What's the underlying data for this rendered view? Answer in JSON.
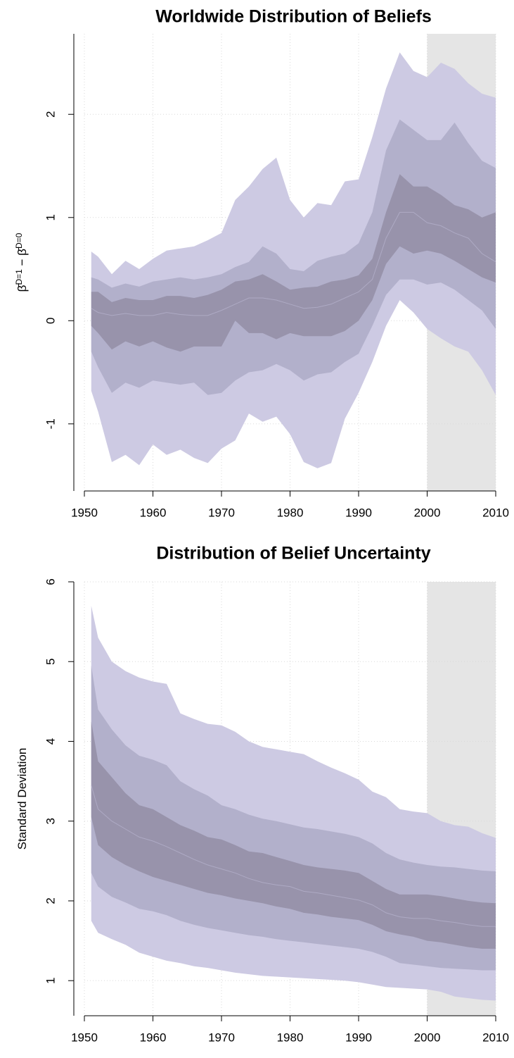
{
  "chart_data": [
    {
      "type": "fan",
      "title": "Worldwide Distribution of Beliefs",
      "ylabel": [
        "β̄",
        "D=1",
        " − β̄",
        "D=0"
      ],
      "x": [
        1951,
        1952,
        1954,
        1956,
        1958,
        1960,
        1962,
        1964,
        1966,
        1968,
        1970,
        1972,
        1974,
        1976,
        1978,
        1980,
        1982,
        1984,
        1986,
        1988,
        1990,
        1992,
        1994,
        1996,
        1998,
        2000,
        2002,
        2004,
        2006,
        2008,
        2010
      ],
      "xlim": [
        1950,
        2010
      ],
      "xticks": [
        1950,
        1960,
        1970,
        1980,
        1990,
        2000,
        2010
      ],
      "ylim": [
        -1.65,
        2.78
      ],
      "yticks": [
        -1,
        0,
        1,
        2
      ],
      "grid": true,
      "shade": {
        "range": [
          2000,
          2010
        ],
        "color": "#e5e5e5"
      },
      "bands": [
        {
          "color": "#cdcae3",
          "upper": [
            0.67,
            0.62,
            0.45,
            0.58,
            0.5,
            0.6,
            0.68,
            0.7,
            0.72,
            0.78,
            0.85,
            1.17,
            1.3,
            1.47,
            1.58,
            1.17,
            1.0,
            1.14,
            1.12,
            1.35,
            1.37,
            1.78,
            2.25,
            2.6,
            2.42,
            2.36,
            2.5,
            2.44,
            2.3,
            2.2,
            2.16
          ],
          "lower": [
            -0.68,
            -0.88,
            -1.37,
            -1.3,
            -1.4,
            -1.2,
            -1.3,
            -1.25,
            -1.33,
            -1.38,
            -1.24,
            -1.16,
            -0.9,
            -0.98,
            -0.93,
            -1.1,
            -1.37,
            -1.43,
            -1.38,
            -0.95,
            -0.7,
            -0.4,
            -0.05,
            0.2,
            0.08,
            -0.08,
            -0.17,
            -0.25,
            -0.3,
            -0.48,
            -0.72
          ]
        },
        {
          "color": "#b2b0cb",
          "upper": [
            0.42,
            0.4,
            0.32,
            0.36,
            0.33,
            0.38,
            0.4,
            0.42,
            0.4,
            0.42,
            0.45,
            0.52,
            0.57,
            0.72,
            0.65,
            0.5,
            0.48,
            0.58,
            0.62,
            0.65,
            0.75,
            1.05,
            1.65,
            1.95,
            1.85,
            1.75,
            1.75,
            1.92,
            1.72,
            1.55,
            1.48
          ],
          "lower": [
            -0.3,
            -0.45,
            -0.7,
            -0.6,
            -0.65,
            -0.58,
            -0.6,
            -0.62,
            -0.6,
            -0.72,
            -0.7,
            -0.58,
            -0.5,
            -0.48,
            -0.42,
            -0.48,
            -0.58,
            -0.52,
            -0.5,
            -0.4,
            -0.32,
            -0.05,
            0.25,
            0.4,
            0.4,
            0.35,
            0.37,
            0.3,
            0.2,
            0.1,
            -0.08
          ]
        },
        {
          "color": "#9893ab",
          "upper": [
            0.28,
            0.28,
            0.18,
            0.22,
            0.2,
            0.2,
            0.24,
            0.24,
            0.22,
            0.25,
            0.3,
            0.38,
            0.4,
            0.45,
            0.38,
            0.3,
            0.32,
            0.33,
            0.38,
            0.4,
            0.44,
            0.6,
            1.05,
            1.42,
            1.3,
            1.3,
            1.22,
            1.12,
            1.08,
            1.0,
            1.05
          ],
          "lower": [
            -0.05,
            -0.12,
            -0.28,
            -0.2,
            -0.25,
            -0.2,
            -0.26,
            -0.3,
            -0.25,
            -0.25,
            -0.25,
            0.0,
            -0.12,
            -0.12,
            -0.18,
            -0.12,
            -0.15,
            -0.15,
            -0.15,
            -0.1,
            0.0,
            0.2,
            0.55,
            0.72,
            0.65,
            0.68,
            0.65,
            0.58,
            0.5,
            0.42,
            0.37
          ]
        }
      ],
      "median": {
        "color": "#aeaac4",
        "values": [
          0.12,
          0.08,
          0.05,
          0.07,
          0.05,
          0.05,
          0.08,
          0.06,
          0.05,
          0.05,
          0.1,
          0.16,
          0.22,
          0.22,
          0.2,
          0.16,
          0.12,
          0.13,
          0.16,
          0.22,
          0.28,
          0.4,
          0.8,
          1.05,
          1.05,
          0.95,
          0.92,
          0.85,
          0.8,
          0.65,
          0.57
        ]
      }
    },
    {
      "type": "fan",
      "title": "Distribution of Belief Uncertainty",
      "ylabel": [
        "Standard Deviation"
      ],
      "x": [
        1951,
        1952,
        1954,
        1956,
        1958,
        1960,
        1962,
        1964,
        1966,
        1968,
        1970,
        1972,
        1974,
        1976,
        1978,
        1980,
        1982,
        1984,
        1986,
        1988,
        1990,
        1992,
        1994,
        1996,
        1998,
        2000,
        2002,
        2004,
        2006,
        2008,
        2010
      ],
      "xlim": [
        1950,
        2010
      ],
      "xticks": [
        1950,
        1960,
        1970,
        1980,
        1990,
        2000,
        2010
      ],
      "ylim": [
        0.56,
        6
      ],
      "yticks": [
        1,
        2,
        3,
        4,
        5,
        6
      ],
      "grid": true,
      "shade": {
        "range": [
          2000,
          2010
        ],
        "color": "#e5e5e5"
      },
      "bands": [
        {
          "color": "#cdcae3",
          "upper": [
            5.7,
            5.3,
            5.0,
            4.88,
            4.8,
            4.75,
            4.72,
            4.35,
            4.28,
            4.22,
            4.2,
            4.12,
            4.0,
            3.93,
            3.9,
            3.87,
            3.84,
            3.75,
            3.67,
            3.6,
            3.52,
            3.37,
            3.3,
            3.15,
            3.12,
            3.1,
            3.0,
            2.95,
            2.93,
            2.85,
            2.79
          ],
          "lower": [
            1.75,
            1.6,
            1.52,
            1.45,
            1.35,
            1.3,
            1.25,
            1.22,
            1.18,
            1.16,
            1.13,
            1.1,
            1.08,
            1.06,
            1.05,
            1.04,
            1.03,
            1.02,
            1.01,
            1.0,
            0.98,
            0.95,
            0.92,
            0.91,
            0.9,
            0.89,
            0.86,
            0.8,
            0.78,
            0.76,
            0.75
          ]
        },
        {
          "color": "#b2b0cb",
          "upper": [
            4.95,
            4.4,
            4.15,
            3.95,
            3.82,
            3.77,
            3.7,
            3.5,
            3.4,
            3.32,
            3.2,
            3.15,
            3.08,
            3.03,
            3.0,
            2.96,
            2.92,
            2.9,
            2.87,
            2.84,
            2.8,
            2.72,
            2.6,
            2.52,
            2.48,
            2.45,
            2.43,
            2.42,
            2.4,
            2.38,
            2.37
          ],
          "lower": [
            2.35,
            2.18,
            2.05,
            1.98,
            1.9,
            1.87,
            1.82,
            1.75,
            1.7,
            1.66,
            1.63,
            1.6,
            1.57,
            1.55,
            1.52,
            1.5,
            1.48,
            1.46,
            1.44,
            1.42,
            1.4,
            1.36,
            1.3,
            1.22,
            1.2,
            1.18,
            1.16,
            1.15,
            1.14,
            1.13,
            1.13
          ]
        },
        {
          "color": "#9893ab",
          "upper": [
            4.25,
            3.75,
            3.55,
            3.35,
            3.2,
            3.15,
            3.05,
            2.95,
            2.88,
            2.8,
            2.77,
            2.7,
            2.62,
            2.6,
            2.55,
            2.5,
            2.45,
            2.42,
            2.4,
            2.38,
            2.35,
            2.25,
            2.15,
            2.08,
            2.08,
            2.08,
            2.06,
            2.03,
            2.0,
            1.98,
            1.97
          ],
          "lower": [
            3.05,
            2.7,
            2.55,
            2.45,
            2.37,
            2.3,
            2.25,
            2.2,
            2.15,
            2.1,
            2.07,
            2.03,
            2.0,
            1.97,
            1.93,
            1.9,
            1.85,
            1.83,
            1.8,
            1.78,
            1.76,
            1.7,
            1.62,
            1.58,
            1.55,
            1.5,
            1.48,
            1.45,
            1.42,
            1.4,
            1.4
          ]
        }
      ],
      "median": {
        "color": "#aeaac4",
        "values": [
          3.45,
          3.15,
          3.0,
          2.9,
          2.8,
          2.75,
          2.68,
          2.6,
          2.52,
          2.45,
          2.4,
          2.35,
          2.28,
          2.23,
          2.2,
          2.18,
          2.12,
          2.1,
          2.07,
          2.04,
          2.01,
          1.95,
          1.85,
          1.8,
          1.78,
          1.78,
          1.75,
          1.73,
          1.7,
          1.68,
          1.68
        ]
      }
    }
  ]
}
